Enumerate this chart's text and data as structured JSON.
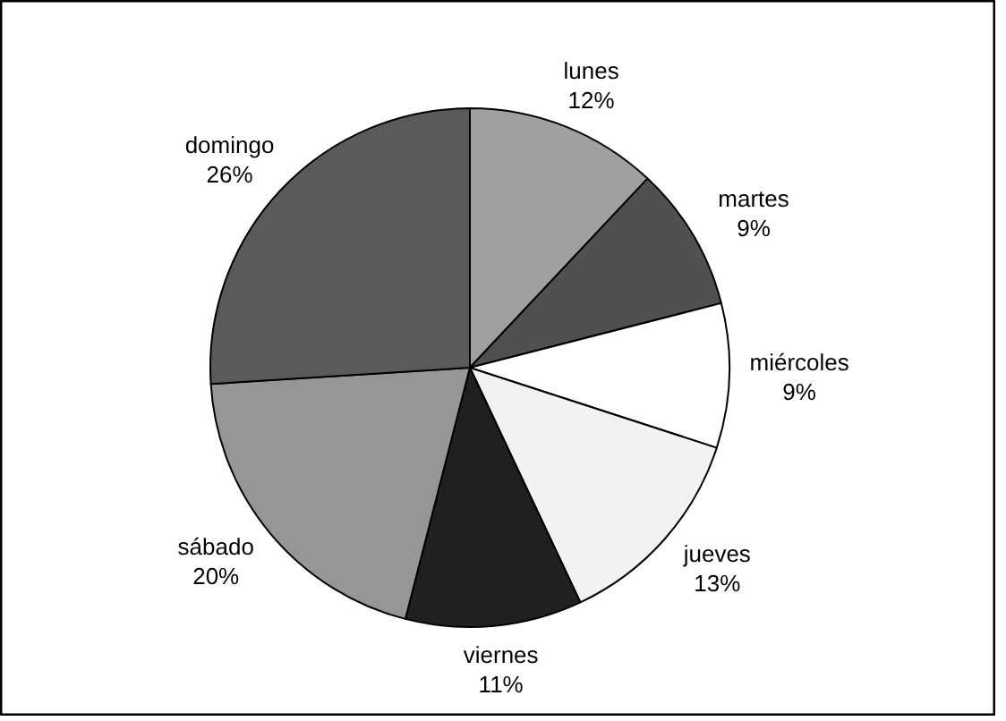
{
  "chart_data": {
    "type": "pie",
    "categories": [
      "lunes",
      "martes",
      "miércoles",
      "jueves",
      "viernes",
      "sábado",
      "domingo"
    ],
    "values": [
      12,
      9,
      9,
      13,
      11,
      20,
      26
    ],
    "colors": [
      "#a0a0a0",
      "#505050",
      "#ffffff",
      "#f2f2f2",
      "#202020",
      "#969696",
      "#5a5a5a"
    ],
    "value_labels": [
      "12%",
      "9%",
      "9%",
      "13%",
      "11%",
      "20%",
      "26%"
    ]
  }
}
